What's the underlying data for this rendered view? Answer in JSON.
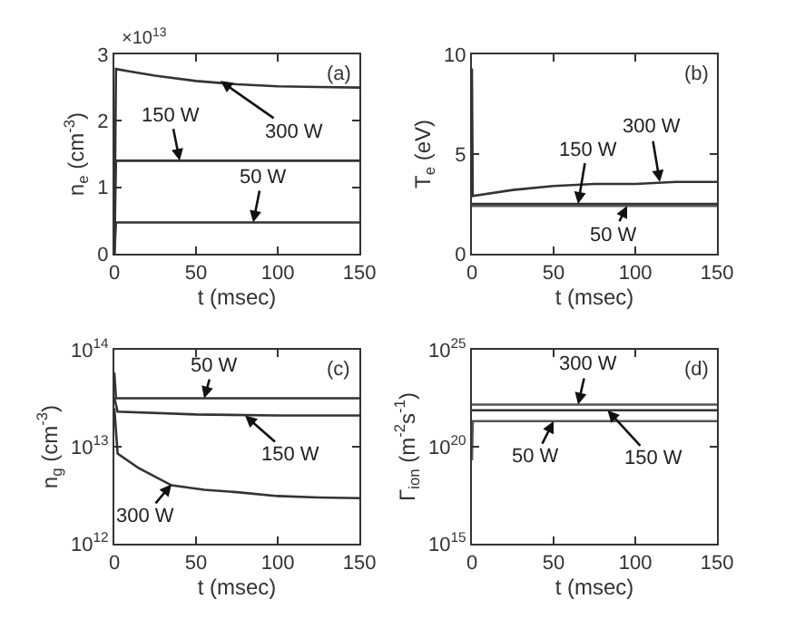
{
  "chart_data": [
    {
      "type": "line",
      "xlabel": "t (msec)",
      "ylabel": "n$_{e}$ (cm$^{-3}$)",
      "xlim": [
        0,
        150
      ],
      "xticks": [
        0,
        50,
        100,
        150
      ],
      "ylim": [
        0,
        3
      ],
      "yticks": [
        0,
        1,
        2,
        3
      ],
      "marker": "none",
      "line_style": "solid",
      "series": [
        {
          "color": "#333333",
          "x": [
            0,
            1,
            10,
            25,
            50,
            75,
            100,
            125,
            150
          ],
          "values": [
            0,
            2.78,
            2.74,
            2.68,
            2.6,
            2.55,
            2.52,
            2.51,
            2.5
          ]
        },
        {
          "color": "#333333",
          "x": [
            0,
            1,
            150
          ],
          "values": [
            0,
            1.4,
            1.4
          ]
        },
        {
          "color": "#333333",
          "x": [
            0,
            1,
            150
          ],
          "values": [
            0,
            0.47,
            0.47
          ]
        }
      ],
      "annotations": [
        "(a)",
        "×10$^{13}$",
        {
          "text": "300 W",
          "x": 65,
          "y": 2.6
        },
        {
          "text": "150 W",
          "x": 40,
          "y": 1.4
        },
        {
          "text": "50 W",
          "x": 85,
          "y": 0.47
        }
      ]
    },
    {
      "type": "line",
      "xlabel": "t (msec)",
      "ylabel": "T$_{e}$ (eV)",
      "xlim": [
        0,
        150
      ],
      "xticks": [
        0,
        50,
        100,
        150
      ],
      "ylim": [
        0,
        10
      ],
      "yticks": [
        0,
        5,
        10
      ],
      "marker": "none",
      "line_style": "solid",
      "series": [
        {
          "color": "#333333",
          "x": [
            0,
            0.5,
            25,
            50,
            75,
            100,
            125,
            150
          ],
          "values": [
            9.3,
            2.9,
            3.2,
            3.4,
            3.5,
            3.5,
            3.6,
            3.6
          ]
        },
        {
          "color": "#333333",
          "x": [
            0,
            150
          ],
          "values": [
            2.5,
            2.5
          ]
        },
        {
          "color": "#555555",
          "x": [
            0,
            150
          ],
          "values": [
            2.4,
            2.4
          ]
        }
      ],
      "annotations": [
        "(b)",
        {
          "text": "300 W",
          "x": 115,
          "y": 3.6
        },
        {
          "text": "150 W",
          "x": 65,
          "y": 2.5
        },
        {
          "text": "50 W",
          "x": 95,
          "y": 2.4
        }
      ]
    },
    {
      "type": "line",
      "xlabel": "t (msec)",
      "ylabel": "n$_{g}$ (cm$^{-3}$)",
      "xlim": [
        0,
        150
      ],
      "xticks": [
        0,
        50,
        100,
        150
      ],
      "log": "y",
      "ylim": [
        1000000000000.0,
        100000000000000.0
      ],
      "yticks": [
        {
          "value": 1000000000000.0,
          "label": "10$^{12}$"
        },
        {
          "value": 10000000000000.0,
          "label": "10$^{13}$"
        },
        {
          "value": 100000000000000.0,
          "label": "10$^{14}$"
        }
      ],
      "marker": "none",
      "line_style": "solid",
      "series": [
        {
          "color": "#333333",
          "x": [
            0,
            1,
            150
          ],
          "values": [
            58000000000000.0,
            31600000000000.0,
            31600000000000.0
          ]
        },
        {
          "color": "#333333",
          "x": [
            0,
            2,
            50,
            100,
            150
          ],
          "values": [
            32000000000000.0,
            23000000000000.0,
            21500000000000.0,
            21000000000000.0,
            21000000000000.0
          ]
        },
        {
          "color": "#333333",
          "x": [
            0,
            2,
            15,
            35,
            55,
            75,
            100,
            125,
            150
          ],
          "values": [
            25000000000000.0,
            8500000000000.0,
            6000000000000.0,
            4000000000000.0,
            3600000000000.0,
            3400000000000.0,
            3100000000000.0,
            3000000000000.0,
            2950000000000.0
          ]
        }
      ],
      "annotations": [
        "(c)",
        {
          "text": "50 W",
          "x": 55,
          "y": 31600000000000.0
        },
        {
          "text": "150 W",
          "x": 80,
          "y": 21000000000000.0
        },
        {
          "text": "300 W",
          "x": 35,
          "y": 4100000000000.0
        }
      ]
    },
    {
      "type": "line",
      "xlabel": "t (msec)",
      "ylabel": "Γ$_{ion}$ (m$^{-2}$s$^{-1}$)",
      "xlim": [
        0,
        150
      ],
      "xticks": [
        0,
        50,
        100,
        150
      ],
      "log": "y",
      "ylim": [
        1000000000000000.0,
        1e+25
      ],
      "yticks": [
        {
          "value": 1000000000000000.0,
          "label": "10$^{15}$"
        },
        {
          "value": 1e+20,
          "label": "10$^{20}$"
        },
        {
          "value": 1e+25,
          "label": "10$^{25}$"
        }
      ],
      "marker": "none",
      "line_style": "solid",
      "series": [
        {
          "color": "#555555",
          "x": [
            0,
            150
          ],
          "values": [
            1.5e+22,
            1.5e+22
          ]
        },
        {
          "color": "#333333",
          "x": [
            0,
            150
          ],
          "values": [
            7.6e+21,
            7.6e+21
          ]
        },
        {
          "color": "#555555",
          "x": [
            0,
            0.5,
            150
          ],
          "values": [
            2e+19,
            2.1e+21,
            2.1e+21
          ]
        }
      ],
      "annotations": [
        "(d)",
        {
          "text": "300 W",
          "x": 65,
          "y": 1.5e+22
        },
        {
          "text": "50 W",
          "x": 50,
          "y": 2.1e+21
        },
        {
          "text": "150 W",
          "x": 83,
          "y": 7.6e+21
        }
      ]
    }
  ]
}
